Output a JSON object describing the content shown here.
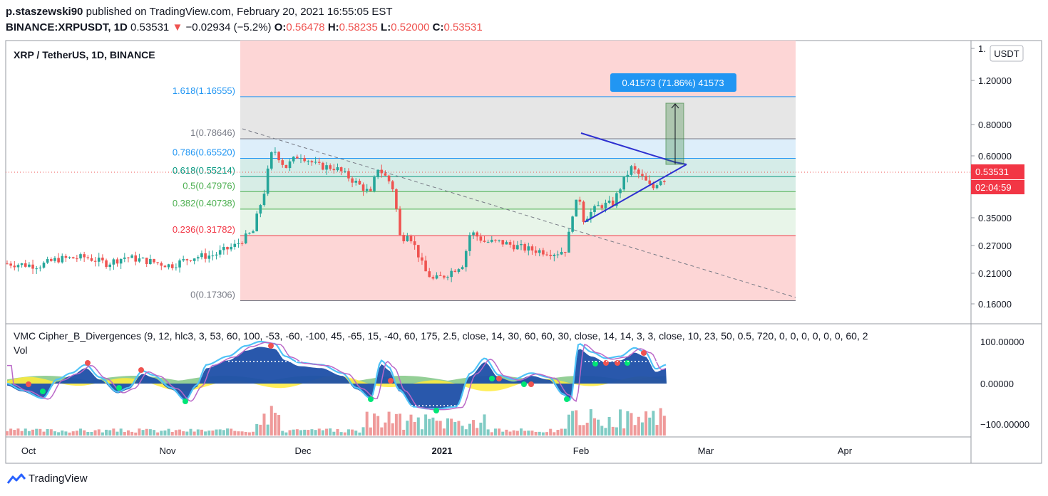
{
  "header": {
    "author": "p.staszewski90",
    "published_text": "published on TradingView.com, February 20, 2021 16:55:05 EST",
    "symbol_line": {
      "symbol": "BINANCE:XRPUSDT, 1D",
      "last": "0.53531",
      "arrow": "▼",
      "change": "−0.02934 (−5.2%)",
      "o_label": "O:",
      "o": "0.56478",
      "h_label": "H:",
      "h": "0.58235",
      "l_label": "L:",
      "l": "0.52000",
      "c_label": "C:",
      "c": "0.53531"
    }
  },
  "pane_title": "XRP / TetherUS, 1D, BINANCE",
  "currency_badge": "USDT",
  "price_badge": "0.53531",
  "countdown_badge": "02:04:59",
  "measure_label": "0.41573 (71.86%) 41573",
  "indicator_title": "VMC Cipher_B_Divergences (9, 12, hlc3, 3, 53, 60, 100, -53, -60, -100, 45, -65, 15, -40, 60, 175, 2.5, close, 14, 30, 60, 60, 30, close, 14, 14, 3, 3, close, 10, 23, 50, 0.5, 720, 0, 0, 0, 0, 0, 0, 60, 2",
  "vol_label": "Vol",
  "footer_brand": "TradingView",
  "colors": {
    "up": "#26a69a",
    "down": "#ef5350",
    "fib_red": "#f23645",
    "fib_green": "#4caf50",
    "fib_teal": "#089981",
    "fib_blue": "#2196f3",
    "fib_grey": "#787b86",
    "triangle": "#2e30d0",
    "wave_blue": "#1e4fa8",
    "wave_light": "#4fc3f7"
  },
  "chart_data": {
    "type": "candlestick",
    "price_axis_labels": [
      "1.",
      "1.20000",
      "0.80000",
      "0.60000",
      "0.35000",
      "0.27000",
      "0.21000",
      "0.16000"
    ],
    "indicator_axis_labels": [
      "100.00000",
      "0.00000",
      "−100.00000"
    ],
    "time_axis_labels": [
      "Oct",
      "Nov",
      "Dec",
      "2021",
      "Feb",
      "Mar",
      "Apr"
    ],
    "fib_levels": [
      {
        "label": "1.618(1.16555)",
        "ratio": 1.618,
        "price": 1.16555
      },
      {
        "label": "1(0.78646)",
        "ratio": 1,
        "price": 0.78646
      },
      {
        "label": "0.786(0.65520)",
        "ratio": 0.786,
        "price": 0.6552
      },
      {
        "label": "0.618(0.55214)",
        "ratio": 0.618,
        "price": 0.55214
      },
      {
        "label": "0.5(0.47976)",
        "ratio": 0.5,
        "price": 0.47976
      },
      {
        "label": "0.382(0.40738)",
        "ratio": 0.382,
        "price": 0.40738
      },
      {
        "label": "0.236(0.31782)",
        "ratio": 0.236,
        "price": 0.31782
      },
      {
        "label": "0(0.17306)",
        "ratio": 0,
        "price": 0.17306
      }
    ],
    "ohlc_last": {
      "open": 0.56478,
      "high": 0.58235,
      "low": 0.52,
      "close": 0.53531,
      "change": -0.02934,
      "change_pct": -5.2
    }
  }
}
